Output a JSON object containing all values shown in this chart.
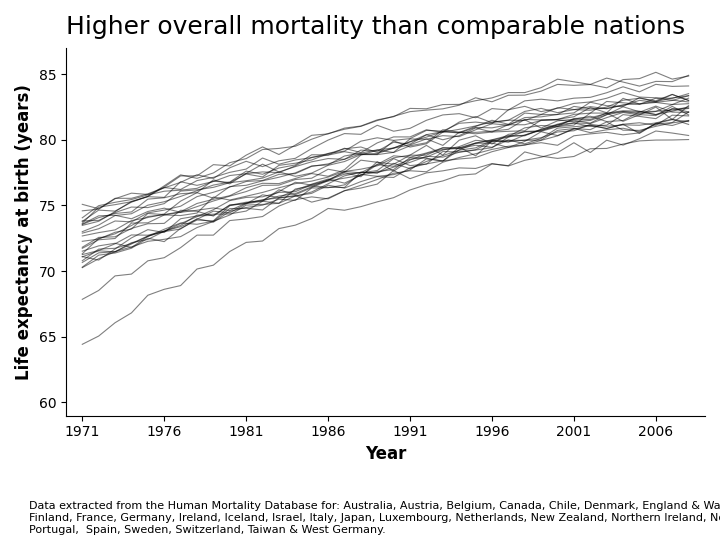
{
  "title": "Higher overall mortality than comparable nations",
  "xlabel": "Year",
  "ylabel": "Life expectancy at birth (years)",
  "caption": "Data extracted from the Human Mortality Database for: Australia, Austria, Belgium, Canada, Chile, Denmark, England & Wales,\nFinland, France, Germany, Ireland, Iceland, Israel, Italy, Japan, Luxembourg, Netherlands, New Zealand, Northern Ireland, Norway,\nPortugal,  Spain, Sweden, Switzerland, Taiwan & West Germany.",
  "xlim": [
    1970,
    2009
  ],
  "ylim": [
    59,
    87
  ],
  "yticks": [
    60,
    65,
    70,
    75,
    80,
    85
  ],
  "xticks": [
    1971,
    1976,
    1981,
    1986,
    1991,
    1996,
    2001,
    2006
  ],
  "start_year": 1971,
  "countries": {
    "Australia": [
      73.7,
      73.9,
      74.3,
      74.5,
      74.9,
      75.2,
      75.7,
      76.0,
      76.5,
      76.6,
      77.0,
      77.2,
      77.5,
      77.7,
      77.9,
      78.2,
      78.6,
      78.8,
      79.1,
      79.4,
      79.7,
      80.1,
      80.3,
      80.6,
      80.9,
      81.2,
      81.4,
      81.6,
      81.9,
      82.0,
      82.2,
      82.4,
      82.6,
      82.8,
      83.0,
      83.2,
      83.4,
      83.5
    ],
    "Austria": [
      70.6,
      70.9,
      71.3,
      71.8,
      72.3,
      72.5,
      73.0,
      73.5,
      73.9,
      74.5,
      74.7,
      75.1,
      75.5,
      75.8,
      76.2,
      76.5,
      77.0,
      77.3,
      77.7,
      78.0,
      78.2,
      78.5,
      78.8,
      79.1,
      79.5,
      79.7,
      80.0,
      80.3,
      80.7,
      80.9,
      81.2,
      81.4,
      81.6,
      81.7,
      81.9,
      82.1,
      82.2,
      82.4
    ],
    "Belgium": [
      71.5,
      72.0,
      72.1,
      72.3,
      72.7,
      73.1,
      73.3,
      73.7,
      74.0,
      74.4,
      74.8,
      75.0,
      75.3,
      75.6,
      75.9,
      76.3,
      76.5,
      76.9,
      77.3,
      77.5,
      77.8,
      78.1,
      78.4,
      78.6,
      79.0,
      79.2,
      79.5,
      79.8,
      80.0,
      80.2,
      80.4,
      80.5,
      80.7,
      80.9,
      81.1,
      81.2,
      81.3,
      81.5
    ],
    "Canada": [
      73.6,
      74.0,
      74.4,
      74.8,
      75.2,
      75.4,
      75.7,
      76.2,
      76.6,
      77.0,
      77.3,
      77.6,
      77.8,
      78.1,
      78.3,
      78.7,
      78.9,
      79.2,
      79.4,
      79.7,
      79.9,
      80.0,
      80.2,
      80.4,
      80.7,
      80.9,
      81.1,
      81.2,
      81.3,
      81.4,
      81.5,
      81.6,
      81.7,
      81.8,
      82.0,
      82.1,
      82.2,
      82.3
    ],
    "Chile": [
      64.6,
      65.0,
      66.0,
      67.0,
      67.7,
      68.5,
      69.2,
      70.0,
      70.7,
      71.3,
      71.9,
      72.5,
      73.0,
      73.4,
      73.8,
      74.3,
      74.7,
      75.1,
      75.5,
      75.8,
      76.2,
      76.5,
      76.8,
      77.1,
      77.4,
      77.8,
      78.1,
      78.4,
      78.6,
      78.8,
      79.0,
      79.2,
      79.4,
      79.5,
      79.8,
      80.0,
      80.2,
      80.4
    ],
    "Denmark": [
      73.7,
      74.0,
      74.2,
      74.3,
      74.5,
      74.7,
      74.7,
      74.6,
      74.8,
      74.9,
      75.1,
      75.3,
      75.3,
      75.5,
      75.6,
      75.8,
      76.0,
      76.2,
      76.5,
      76.7,
      76.9,
      77.2,
      77.4,
      77.7,
      77.9,
      78.0,
      78.2,
      78.5,
      78.8,
      79.0,
      79.2,
      79.5,
      79.8,
      80.0,
      80.2,
      80.4,
      80.5,
      80.6
    ],
    "England & Wales": [
      72.0,
      72.4,
      72.8,
      73.2,
      73.6,
      73.8,
      74.1,
      74.4,
      74.7,
      75.0,
      75.3,
      75.6,
      75.8,
      76.2,
      76.5,
      76.8,
      77.0,
      77.4,
      77.7,
      77.9,
      78.2,
      78.5,
      78.7,
      79.0,
      79.2,
      79.5,
      79.8,
      80.0,
      80.3,
      80.5,
      80.7,
      80.9,
      81.1,
      81.2,
      81.3,
      81.5,
      81.6,
      81.7
    ],
    "Finland": [
      70.7,
      71.2,
      71.8,
      72.5,
      72.8,
      73.3,
      73.7,
      74.2,
      74.5,
      74.9,
      75.2,
      75.5,
      75.7,
      76.0,
      76.4,
      76.8,
      77.1,
      77.5,
      77.8,
      78.1,
      78.5,
      78.8,
      79.2,
      79.5,
      79.8,
      80.1,
      80.4,
      80.7,
      81.0,
      81.2,
      81.4,
      81.6,
      81.8,
      82.0,
      82.2,
      82.3,
      82.5,
      82.6
    ],
    "France": [
      72.9,
      73.2,
      73.5,
      73.9,
      74.3,
      74.7,
      75.0,
      75.4,
      75.8,
      76.2,
      76.5,
      76.9,
      77.2,
      77.5,
      77.9,
      78.2,
      78.5,
      78.8,
      79.1,
      79.4,
      79.7,
      80.0,
      80.3,
      80.6,
      80.9,
      81.2,
      81.5,
      81.7,
      81.9,
      82.1,
      82.3,
      82.4,
      82.6,
      82.7,
      82.9,
      83.0,
      83.2,
      83.3
    ],
    "Germany": [
      71.2,
      71.7,
      72.2,
      72.7,
      73.1,
      73.4,
      73.8,
      74.2,
      74.6,
      75.0,
      75.4,
      75.7,
      76.0,
      76.3,
      76.6,
      77.0,
      77.3,
      77.7,
      78.0,
      78.4,
      78.7,
      78.9,
      79.2,
      79.5,
      79.7,
      80.0,
      80.3,
      80.5,
      80.8,
      81.0,
      81.2,
      81.3,
      81.5,
      81.6,
      81.7,
      81.8,
      82.0,
      82.1
    ],
    "Ireland": [
      71.3,
      71.7,
      72.0,
      72.3,
      72.6,
      73.0,
      73.4,
      73.8,
      74.1,
      74.5,
      74.8,
      75.2,
      75.5,
      75.8,
      76.2,
      76.5,
      76.8,
      77.2,
      77.5,
      77.9,
      78.2,
      78.5,
      78.8,
      79.2,
      79.5,
      79.8,
      80.1,
      80.4,
      80.7,
      80.9,
      81.1,
      81.3,
      81.5,
      81.6,
      81.7,
      81.8,
      82.0,
      82.1
    ],
    "Iceland": [
      74.3,
      74.7,
      75.0,
      75.5,
      75.9,
      76.1,
      76.6,
      77.0,
      77.3,
      77.7,
      78.1,
      78.4,
      78.7,
      79.1,
      79.4,
      79.8,
      80.1,
      80.4,
      80.7,
      81.0,
      81.3,
      81.5,
      81.8,
      82.0,
      82.2,
      82.4,
      82.6,
      82.8,
      83.0,
      83.2,
      83.3,
      83.5,
      83.6,
      83.8,
      83.9,
      84.1,
      84.2,
      84.3
    ],
    "Israel": [
      72.3,
      72.7,
      73.1,
      73.5,
      73.9,
      74.3,
      74.7,
      75.1,
      75.5,
      75.8,
      76.2,
      76.5,
      76.8,
      77.2,
      77.5,
      77.8,
      78.1,
      78.5,
      78.8,
      79.1,
      79.4,
      79.7,
      80.0,
      80.3,
      80.6,
      80.9,
      81.2,
      81.5,
      81.7,
      81.9,
      82.1,
      82.3,
      82.5,
      82.6,
      82.7,
      82.8,
      83.0,
      83.1
    ],
    "Italy": [
      72.3,
      72.8,
      73.4,
      73.9,
      74.3,
      74.7,
      75.1,
      75.5,
      75.9,
      76.3,
      76.7,
      77.0,
      77.3,
      77.7,
      78.0,
      78.3,
      78.7,
      79.0,
      79.3,
      79.6,
      80.0,
      80.2,
      80.5,
      80.8,
      81.0,
      81.3,
      81.6,
      81.9,
      82.1,
      82.3,
      82.5,
      82.7,
      82.9,
      83.0,
      83.1,
      83.2,
      83.3,
      83.4
    ],
    "Japan": [
      73.5,
      74.1,
      74.7,
      75.3,
      75.9,
      76.5,
      77.0,
      77.4,
      77.9,
      78.3,
      78.7,
      79.1,
      79.5,
      79.8,
      80.2,
      80.5,
      80.8,
      81.2,
      81.5,
      81.8,
      82.1,
      82.3,
      82.6,
      82.8,
      83.1,
      83.3,
      83.5,
      83.7,
      83.9,
      84.1,
      84.2,
      84.3,
      84.4,
      84.5,
      84.6,
      84.7,
      84.9,
      85.0
    ],
    "Luxembourg": [
      70.3,
      70.8,
      71.3,
      71.8,
      72.3,
      72.8,
      73.2,
      73.7,
      74.2,
      74.7,
      75.1,
      75.5,
      75.9,
      76.2,
      76.5,
      76.8,
      77.2,
      77.5,
      77.9,
      78.2,
      78.5,
      78.8,
      79.1,
      79.4,
      79.7,
      80.0,
      80.3,
      80.6,
      80.9,
      81.1,
      81.3,
      81.5,
      81.7,
      81.8,
      82.0,
      82.1,
      82.3,
      82.4
    ],
    "Netherlands": [
      74.1,
      74.5,
      74.9,
      75.3,
      75.6,
      75.9,
      76.2,
      76.5,
      76.8,
      77.1,
      77.3,
      77.5,
      77.7,
      77.9,
      78.2,
      78.5,
      78.7,
      79.0,
      79.2,
      79.4,
      79.6,
      79.8,
      80.0,
      80.2,
      80.5,
      80.7,
      80.9,
      81.1,
      81.3,
      81.5,
      81.7,
      81.8,
      82.0,
      82.1,
      82.2,
      82.3,
      82.4,
      82.5
    ],
    "New Zealand": [
      72.0,
      72.5,
      72.9,
      73.3,
      73.7,
      74.0,
      74.3,
      74.7,
      75.0,
      75.4,
      75.7,
      76.0,
      76.3,
      76.7,
      77.0,
      77.3,
      77.6,
      77.9,
      78.2,
      78.6,
      78.9,
      79.2,
      79.5,
      79.7,
      80.0,
      80.2,
      80.5,
      80.7,
      81.0,
      81.2,
      81.4,
      81.6,
      81.8,
      81.9,
      82.0,
      82.2,
      82.3,
      82.4
    ],
    "Northern Ireland": [
      71.1,
      71.5,
      71.8,
      72.2,
      72.5,
      72.9,
      73.3,
      73.7,
      74.0,
      74.4,
      74.7,
      75.1,
      75.4,
      75.7,
      76.1,
      76.4,
      76.7,
      77.1,
      77.4,
      77.7,
      78.1,
      78.4,
      78.7,
      79.0,
      79.3,
      79.5,
      79.8,
      80.0,
      80.3,
      80.5,
      80.7,
      80.9,
      81.0,
      81.1,
      81.2,
      81.3,
      81.5,
      81.6
    ],
    "Norway": [
      74.4,
      74.8,
      75.2,
      75.5,
      75.8,
      76.0,
      76.3,
      76.5,
      76.8,
      77.0,
      77.3,
      77.6,
      77.8,
      78.1,
      78.4,
      78.7,
      78.9,
      79.2,
      79.5,
      79.7,
      80.0,
      80.2,
      80.5,
      80.7,
      80.9,
      81.1,
      81.3,
      81.5,
      81.7,
      81.9,
      82.0,
      82.2,
      82.3,
      82.5,
      82.6,
      82.8,
      82.9,
      83.0
    ],
    "Portugal": [
      68.0,
      68.5,
      69.0,
      69.8,
      70.5,
      71.2,
      71.8,
      72.3,
      72.9,
      73.4,
      73.8,
      74.3,
      74.8,
      75.2,
      75.5,
      75.9,
      76.3,
      76.6,
      77.0,
      77.3,
      77.6,
      77.9,
      78.2,
      78.5,
      78.8,
      79.0,
      79.3,
      79.5,
      79.8,
      80.0,
      80.2,
      80.4,
      80.5,
      80.7,
      80.8,
      81.0,
      81.1,
      81.3
    ],
    "Spain": [
      73.0,
      73.5,
      74.0,
      74.5,
      75.0,
      75.4,
      75.8,
      76.2,
      76.5,
      76.9,
      77.3,
      77.6,
      77.9,
      78.2,
      78.5,
      78.8,
      79.1,
      79.4,
      79.7,
      80.0,
      80.2,
      80.5,
      80.7,
      81.0,
      81.2,
      81.4,
      81.6,
      81.8,
      82.0,
      82.2,
      82.4,
      82.6,
      82.7,
      82.9,
      83.0,
      83.1,
      83.2,
      83.3
    ],
    "Sweden": [
      74.7,
      75.0,
      75.3,
      75.6,
      75.9,
      76.2,
      76.5,
      76.8,
      77.1,
      77.4,
      77.7,
      78.0,
      78.3,
      78.6,
      78.8,
      79.1,
      79.3,
      79.6,
      79.8,
      80.1,
      80.3,
      80.6,
      80.8,
      81.1,
      81.3,
      81.6,
      81.9,
      82.1,
      82.3,
      82.5,
      82.7,
      82.8,
      83.0,
      83.1,
      83.3,
      83.4,
      83.5,
      83.7
    ],
    "Switzerland": [
      73.8,
      74.2,
      74.7,
      75.2,
      75.7,
      76.2,
      76.7,
      77.2,
      77.6,
      78.0,
      78.4,
      78.8,
      79.2,
      79.6,
      79.9,
      80.2,
      80.6,
      80.9,
      81.2,
      81.5,
      81.8,
      82.1,
      82.4,
      82.6,
      82.9,
      83.1,
      83.3,
      83.5,
      83.7,
      83.9,
      84.1,
      84.2,
      84.3,
      84.4,
      84.5,
      84.6,
      84.7,
      84.8
    ],
    "Taiwan": [
      70.6,
      71.0,
      71.5,
      72.0,
      72.5,
      73.0,
      73.5,
      73.9,
      74.3,
      74.7,
      75.1,
      75.5,
      75.9,
      76.2,
      76.5,
      76.8,
      77.2,
      77.5,
      77.8,
      78.1,
      78.4,
      78.7,
      79.0,
      79.2,
      79.5,
      79.7,
      79.9,
      80.1,
      80.3,
      80.5,
      80.7,
      80.8,
      80.9,
      81.0,
      81.1,
      81.2,
      81.3,
      81.4
    ],
    "West Germany": [
      71.8,
      72.3,
      72.8,
      73.3,
      73.7,
      74.0,
      74.4,
      74.8,
      75.2,
      75.6,
      75.9,
      76.2,
      76.5,
      76.8,
      77.1,
      77.4,
      77.7,
      78.0,
      78.3,
      78.5,
      78.8,
      79.0,
      79.2,
      79.5,
      79.7,
      79.9,
      80.1,
      80.3,
      80.5,
      80.7,
      80.8,
      81.0,
      81.1,
      81.2,
      81.3,
      81.4,
      81.5,
      81.6
    ]
  },
  "noise_seed": 42,
  "noise_scale": 0.25,
  "line_color": "#000000",
  "line_alpha": 0.5,
  "line_width": 0.8,
  "title_fontsize": 18,
  "title_fontweight": "normal",
  "axis_label_fontsize": 12,
  "axis_label_fontweight": "bold",
  "tick_fontsize": 10,
  "caption_fontsize": 8,
  "background_color": "#ffffff"
}
